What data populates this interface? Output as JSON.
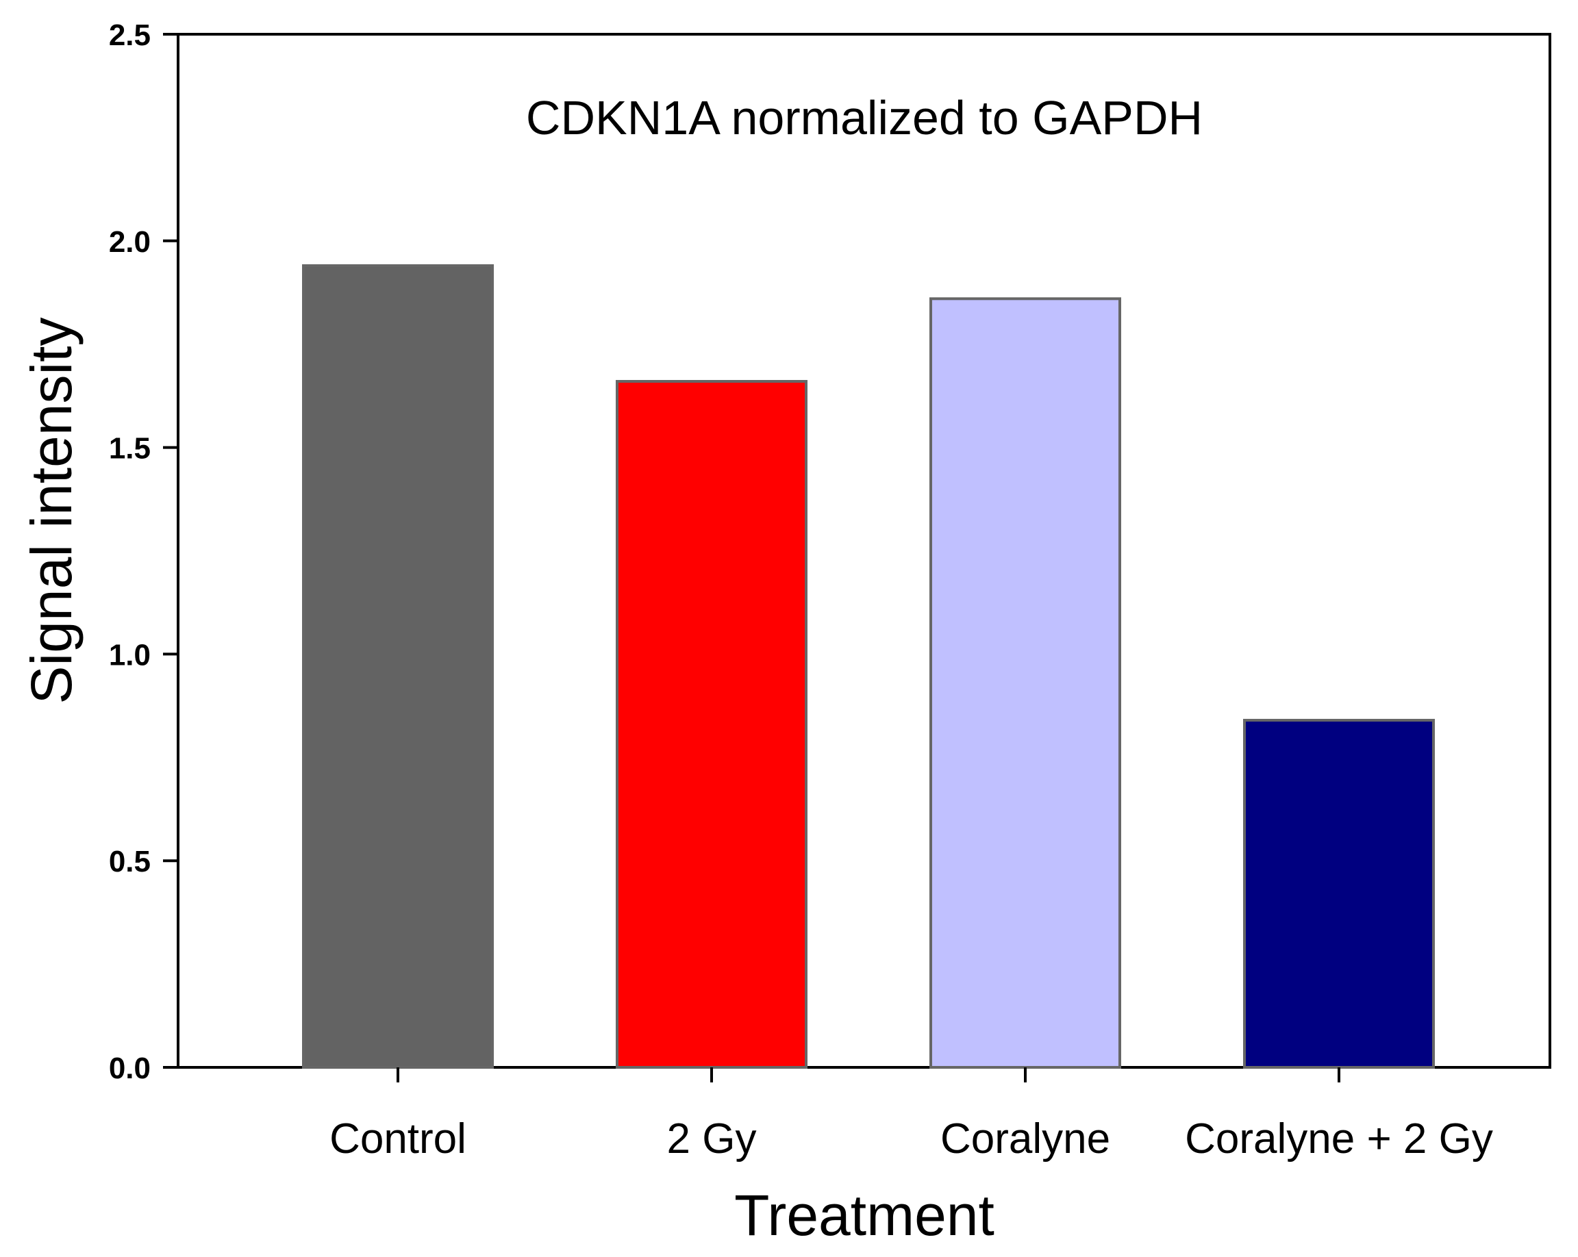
{
  "chart_data": {
    "type": "bar",
    "title": "CDKN1A normalized to GAPDH",
    "xlabel": "Treatment",
    "ylabel": "Signal intensity",
    "ylim": [
      0,
      2.5
    ],
    "yticks": [
      "0.0",
      "0.5",
      "1.0",
      "1.5",
      "2.0",
      "2.5"
    ],
    "grid": false,
    "legend": "none",
    "categories": [
      "Control",
      "2 Gy",
      "Coralyne",
      "Coralyne + 2 Gy"
    ],
    "values": [
      1.94,
      1.66,
      1.86,
      0.84
    ],
    "colors": [
      "#636363",
      "#ff0000",
      "#c0c0ff",
      "#000080"
    ]
  }
}
